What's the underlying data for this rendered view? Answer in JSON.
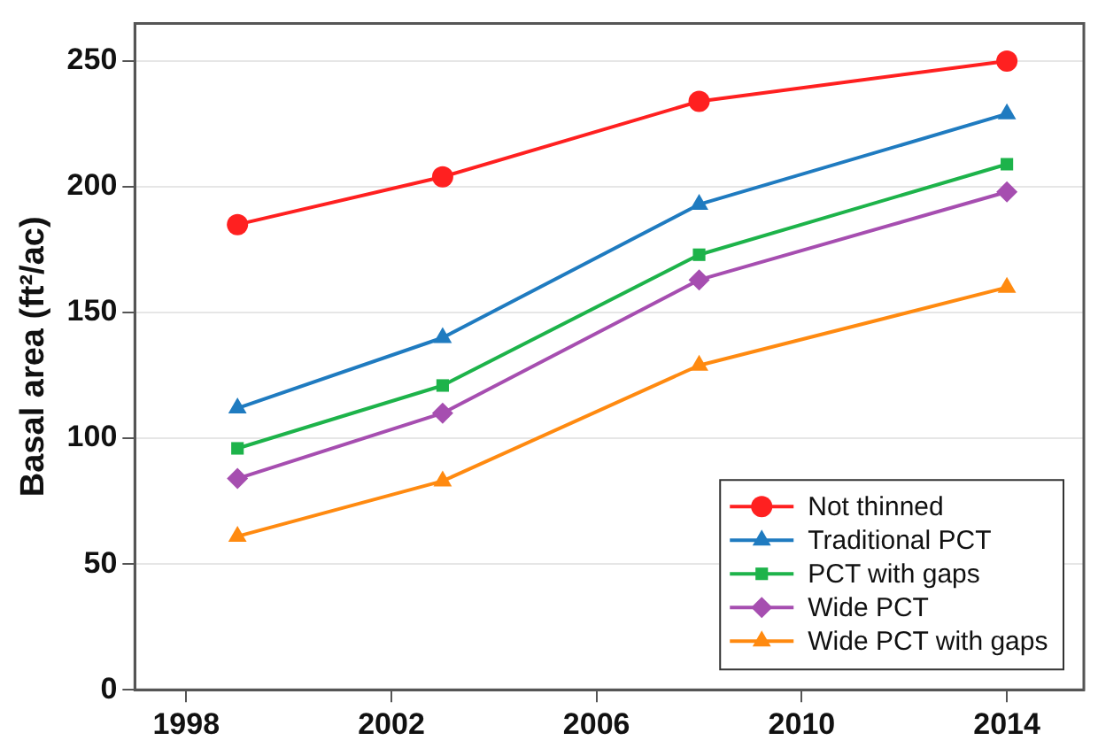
{
  "chart_data": {
    "type": "line",
    "ylabel": "Basal area (ft²/ac)",
    "x": [
      1999,
      2003,
      2008,
      2014
    ],
    "series": [
      {
        "name": "Not thinned",
        "color": "#ff2020",
        "marker": "circle",
        "values": [
          185,
          204,
          234,
          250
        ]
      },
      {
        "name": "Traditional PCT",
        "color": "#1f7bc0",
        "marker": "triangle",
        "values": [
          112,
          140,
          193,
          229
        ]
      },
      {
        "name": "PCT with gaps",
        "color": "#1db34a",
        "marker": "square",
        "values": [
          96,
          121,
          173,
          209
        ]
      },
      {
        "name": "Wide PCT",
        "color": "#a64eb0",
        "marker": "diamond",
        "values": [
          84,
          110,
          163,
          198
        ]
      },
      {
        "name": "Wide PCT with gaps",
        "color": "#ff8a10",
        "marker": "triangle",
        "values": [
          61,
          83,
          129,
          160
        ]
      }
    ],
    "xlim": [
      1997,
      2015.5
    ],
    "xticks": [
      1998,
      2002,
      2006,
      2010,
      2014
    ],
    "ylim": [
      0,
      265
    ],
    "yticks": [
      0,
      50,
      100,
      150,
      200,
      250
    ],
    "grid": "y",
    "legend": "bottom right",
    "line_style": "solid"
  }
}
